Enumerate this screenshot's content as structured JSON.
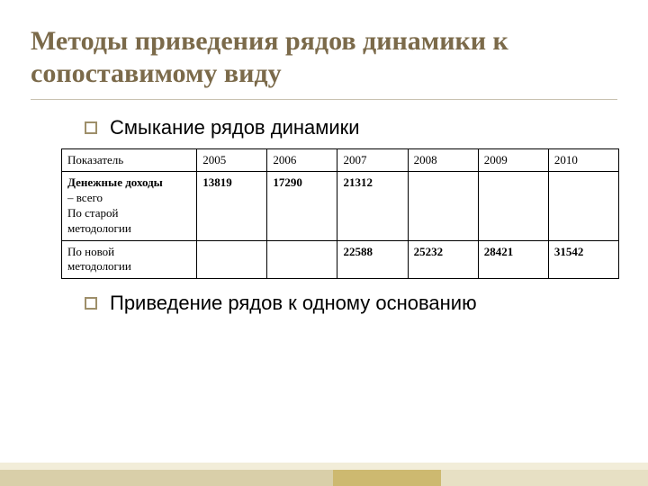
{
  "slide": {
    "title": "Методы приведения рядов динамики к сопоставимому виду",
    "bullets": [
      "Смыкание рядов динамики",
      "Приведение рядов к одному основанию"
    ]
  },
  "table": {
    "type": "table",
    "header_label": "Показатель",
    "years": [
      "2005",
      "2006",
      "2007",
      "2008",
      "2009",
      "2010"
    ],
    "rows": [
      {
        "label_bold": "Денежные доходы",
        "label_lines": [
          "– всего",
          "По  старой",
          "методологии"
        ],
        "values": [
          "13819",
          "17290",
          "21312",
          "",
          "",
          ""
        ]
      },
      {
        "label_bold": "",
        "label_lines": [
          "По  новой",
          "методологии"
        ],
        "values": [
          "",
          "",
          "22588",
          "25232",
          "28421",
          "31542"
        ]
      }
    ],
    "colors": {
      "border": "#000000",
      "header_text": "#000000",
      "cell_bg": "#ffffff"
    }
  },
  "accent_colors": {
    "bar_a": "#d9cfa9",
    "bar_b": "#cdb970",
    "bar_c": "#e7e0c4",
    "bar_top": "#f2edd9"
  }
}
